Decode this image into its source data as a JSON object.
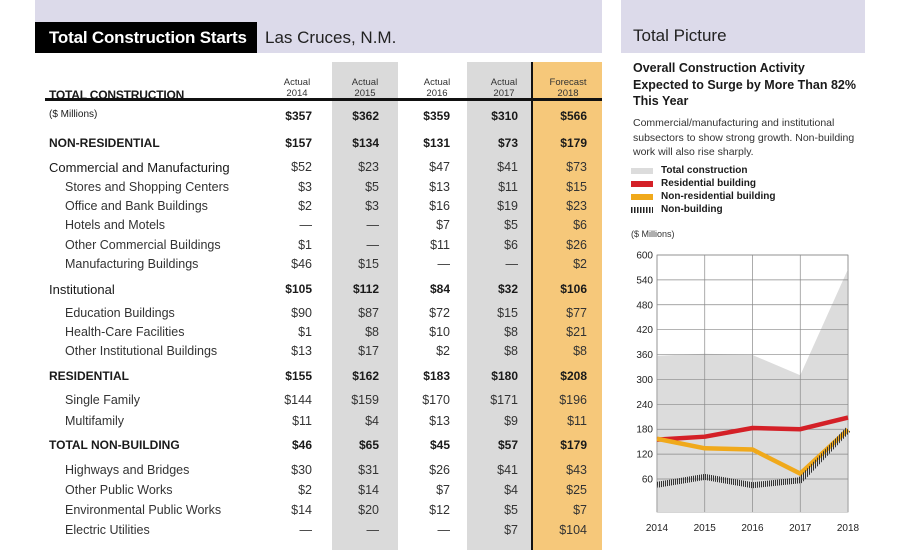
{
  "table": {
    "title": "Total Construction Starts",
    "subtitle": "Las Cruces, N.M.",
    "col_top": [
      "Actual",
      "Actual",
      "Actual",
      "Actual",
      "Forecast"
    ],
    "col_year": [
      "2014",
      "2015",
      "2016",
      "2017",
      "2018"
    ],
    "header_label": "TOTAL CONSTRUCTION",
    "rows": [
      {
        "label": "($ Millions)",
        "level": "units",
        "values": [
          "$357",
          "$362",
          "$359",
          "$310",
          "$566"
        ]
      },
      {
        "label": "NON-RESIDENTIAL",
        "level": "section",
        "values": [
          "$157",
          "$134",
          "$131",
          "$73",
          "$179"
        ]
      },
      {
        "label": "Commercial and Manufacturing",
        "level": "group",
        "values": [
          "$52",
          "$23",
          "$47",
          "$41",
          "$73"
        ]
      },
      {
        "label": "Stores and Shopping Centers",
        "level": "item",
        "values": [
          "$3",
          "$5",
          "$13",
          "$11",
          "$15"
        ]
      },
      {
        "label": "Office and Bank Buildings",
        "level": "item",
        "values": [
          "$2",
          "$3",
          "$16",
          "$19",
          "$23"
        ]
      },
      {
        "label": "Hotels and Motels",
        "level": "item",
        "values": [
          "—",
          "—",
          "$7",
          "$5",
          "$6"
        ]
      },
      {
        "label": "Other Commercial Buildings",
        "level": "item",
        "values": [
          "$1",
          "—",
          "$11",
          "$6",
          "$26"
        ]
      },
      {
        "label": "Manufacturing Buildings",
        "level": "item",
        "values": [
          "$46",
          "$15",
          "—",
          "—",
          "$2"
        ]
      },
      {
        "label": "Institutional",
        "level": "group",
        "values": [
          "$105",
          "$112",
          "$84",
          "$32",
          "$106"
        ]
      },
      {
        "label": "Education Buildings",
        "level": "item",
        "values": [
          "$90",
          "$87",
          "$72",
          "$15",
          "$77"
        ]
      },
      {
        "label": "Health-Care Facilities",
        "level": "item",
        "values": [
          "$1",
          "$8",
          "$10",
          "$8",
          "$21"
        ]
      },
      {
        "label": "Other Institutional Buildings",
        "level": "item",
        "values": [
          "$13",
          "$17",
          "$2",
          "$8",
          "$8"
        ]
      },
      {
        "label": "RESIDENTIAL",
        "level": "section",
        "values": [
          "$155",
          "$162",
          "$183",
          "$180",
          "$208"
        ]
      },
      {
        "label": "Single Family",
        "level": "item",
        "values": [
          "$144",
          "$159",
          "$170",
          "$171",
          "$196"
        ]
      },
      {
        "label": "Multifamily",
        "level": "item",
        "values": [
          "$11",
          "$4",
          "$13",
          "$9",
          "$11"
        ]
      },
      {
        "label": "TOTAL NON-BUILDING",
        "level": "section",
        "values": [
          "$46",
          "$65",
          "$45",
          "$57",
          "$179"
        ]
      },
      {
        "label": "Highways and Bridges",
        "level": "item",
        "values": [
          "$30",
          "$31",
          "$26",
          "$41",
          "$43"
        ]
      },
      {
        "label": "Other Public Works",
        "level": "item",
        "values": [
          "$2",
          "$14",
          "$7",
          "$4",
          "$25"
        ]
      },
      {
        "label": "Environmental Public Works",
        "level": "item",
        "values": [
          "$14",
          "$20",
          "$12",
          "$5",
          "$7"
        ]
      },
      {
        "label": "Electric Utilities",
        "level": "item",
        "values": [
          "—",
          "—",
          "—",
          "$7",
          "$104"
        ]
      }
    ]
  },
  "chart_panel": {
    "header": "Total Picture",
    "title": "Overall Construction Activity Expected to Surge by More Than 82% This Year",
    "description": "Commercial/manufacturing and institutional subsectors to show strong growth. Non-building work will also rise sharply.",
    "units_label": "($ Millions)"
  },
  "chart_data": {
    "type": "line",
    "title": "Overall Construction Activity Expected to Surge by More Than 82% This Year",
    "ylabel": "($ Millions)",
    "x": [
      2014,
      2015,
      2016,
      2017,
      2018
    ],
    "ylim": [
      0,
      600
    ],
    "yticks": [
      60,
      120,
      180,
      240,
      300,
      360,
      420,
      480,
      540,
      600
    ],
    "grid": true,
    "legend_position": "top",
    "series": [
      {
        "name": "Total construction",
        "values": [
          357,
          362,
          359,
          310,
          566
        ],
        "style": "area",
        "color": "#dcdcdc"
      },
      {
        "name": "Residential building",
        "values": [
          155,
          162,
          183,
          180,
          208
        ],
        "style": "line",
        "color": "#d42027"
      },
      {
        "name": "Non-residential building",
        "values": [
          157,
          134,
          131,
          73,
          179
        ],
        "style": "line",
        "color": "#f0a91b"
      },
      {
        "name": "Non-building",
        "values": [
          46,
          65,
          45,
          57,
          179
        ],
        "style": "hatched",
        "color": "#555555"
      }
    ]
  }
}
